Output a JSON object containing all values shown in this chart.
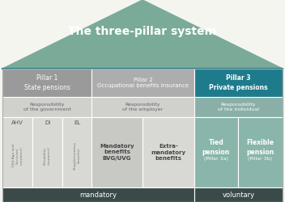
{
  "title": "The three-pillar system",
  "title_color": "#ffffff",
  "roof_color": "#7aab98",
  "bg_color": "#f5f5f0",
  "pillar1_header": "Pillar 1\nState pensions",
  "pillar2_header": "Pillar 2\nOccupational benefits insurance",
  "pillar3_header": "Pillar 3\nPrivate pensions",
  "pillar1_header_color": "#9a9a9a",
  "pillar2_header_color": "#adadad",
  "pillar3_header_color": "#1e7b8c",
  "resp1": "Responsibility\nof the government",
  "resp2": "Responsibility\nof the employer",
  "resp3": "Responsibility\nof the individual",
  "resp_bg_gray": "#d0d0cc",
  "resp_bg_green": "#8aafa8",
  "col_ahv_label": "AHV",
  "col_di_label": "DI",
  "col_el_label": "EL",
  "col_mand_label": "Mandatory\nbenefits\nBVG/UVG",
  "col_extra_label": "Extra-\nmandatory\nbenefits",
  "col_tied_label": "Tied\npension",
  "col_tied_sub": "(Pillar 3a)",
  "col_flex_label": "Flexible\npension",
  "col_flex_sub": "(Pillar 3b)",
  "col_ahv_sub": "(Old-Age and\nSurvivors'\ninsurance)",
  "col_di_sub": "(Disability\ninsurance)",
  "col_el_sub": "(Supplementary\nbenefits)",
  "cell_gray": "#d8d8d4",
  "cell_green": "#8ab5aa",
  "mandatory_label": "mandatory",
  "voluntary_label": "voluntary",
  "footer_color": "#3a4a48",
  "border_color": "#aaaaaa",
  "white": "#ffffff",
  "divider_teal": "#1e7b8c"
}
